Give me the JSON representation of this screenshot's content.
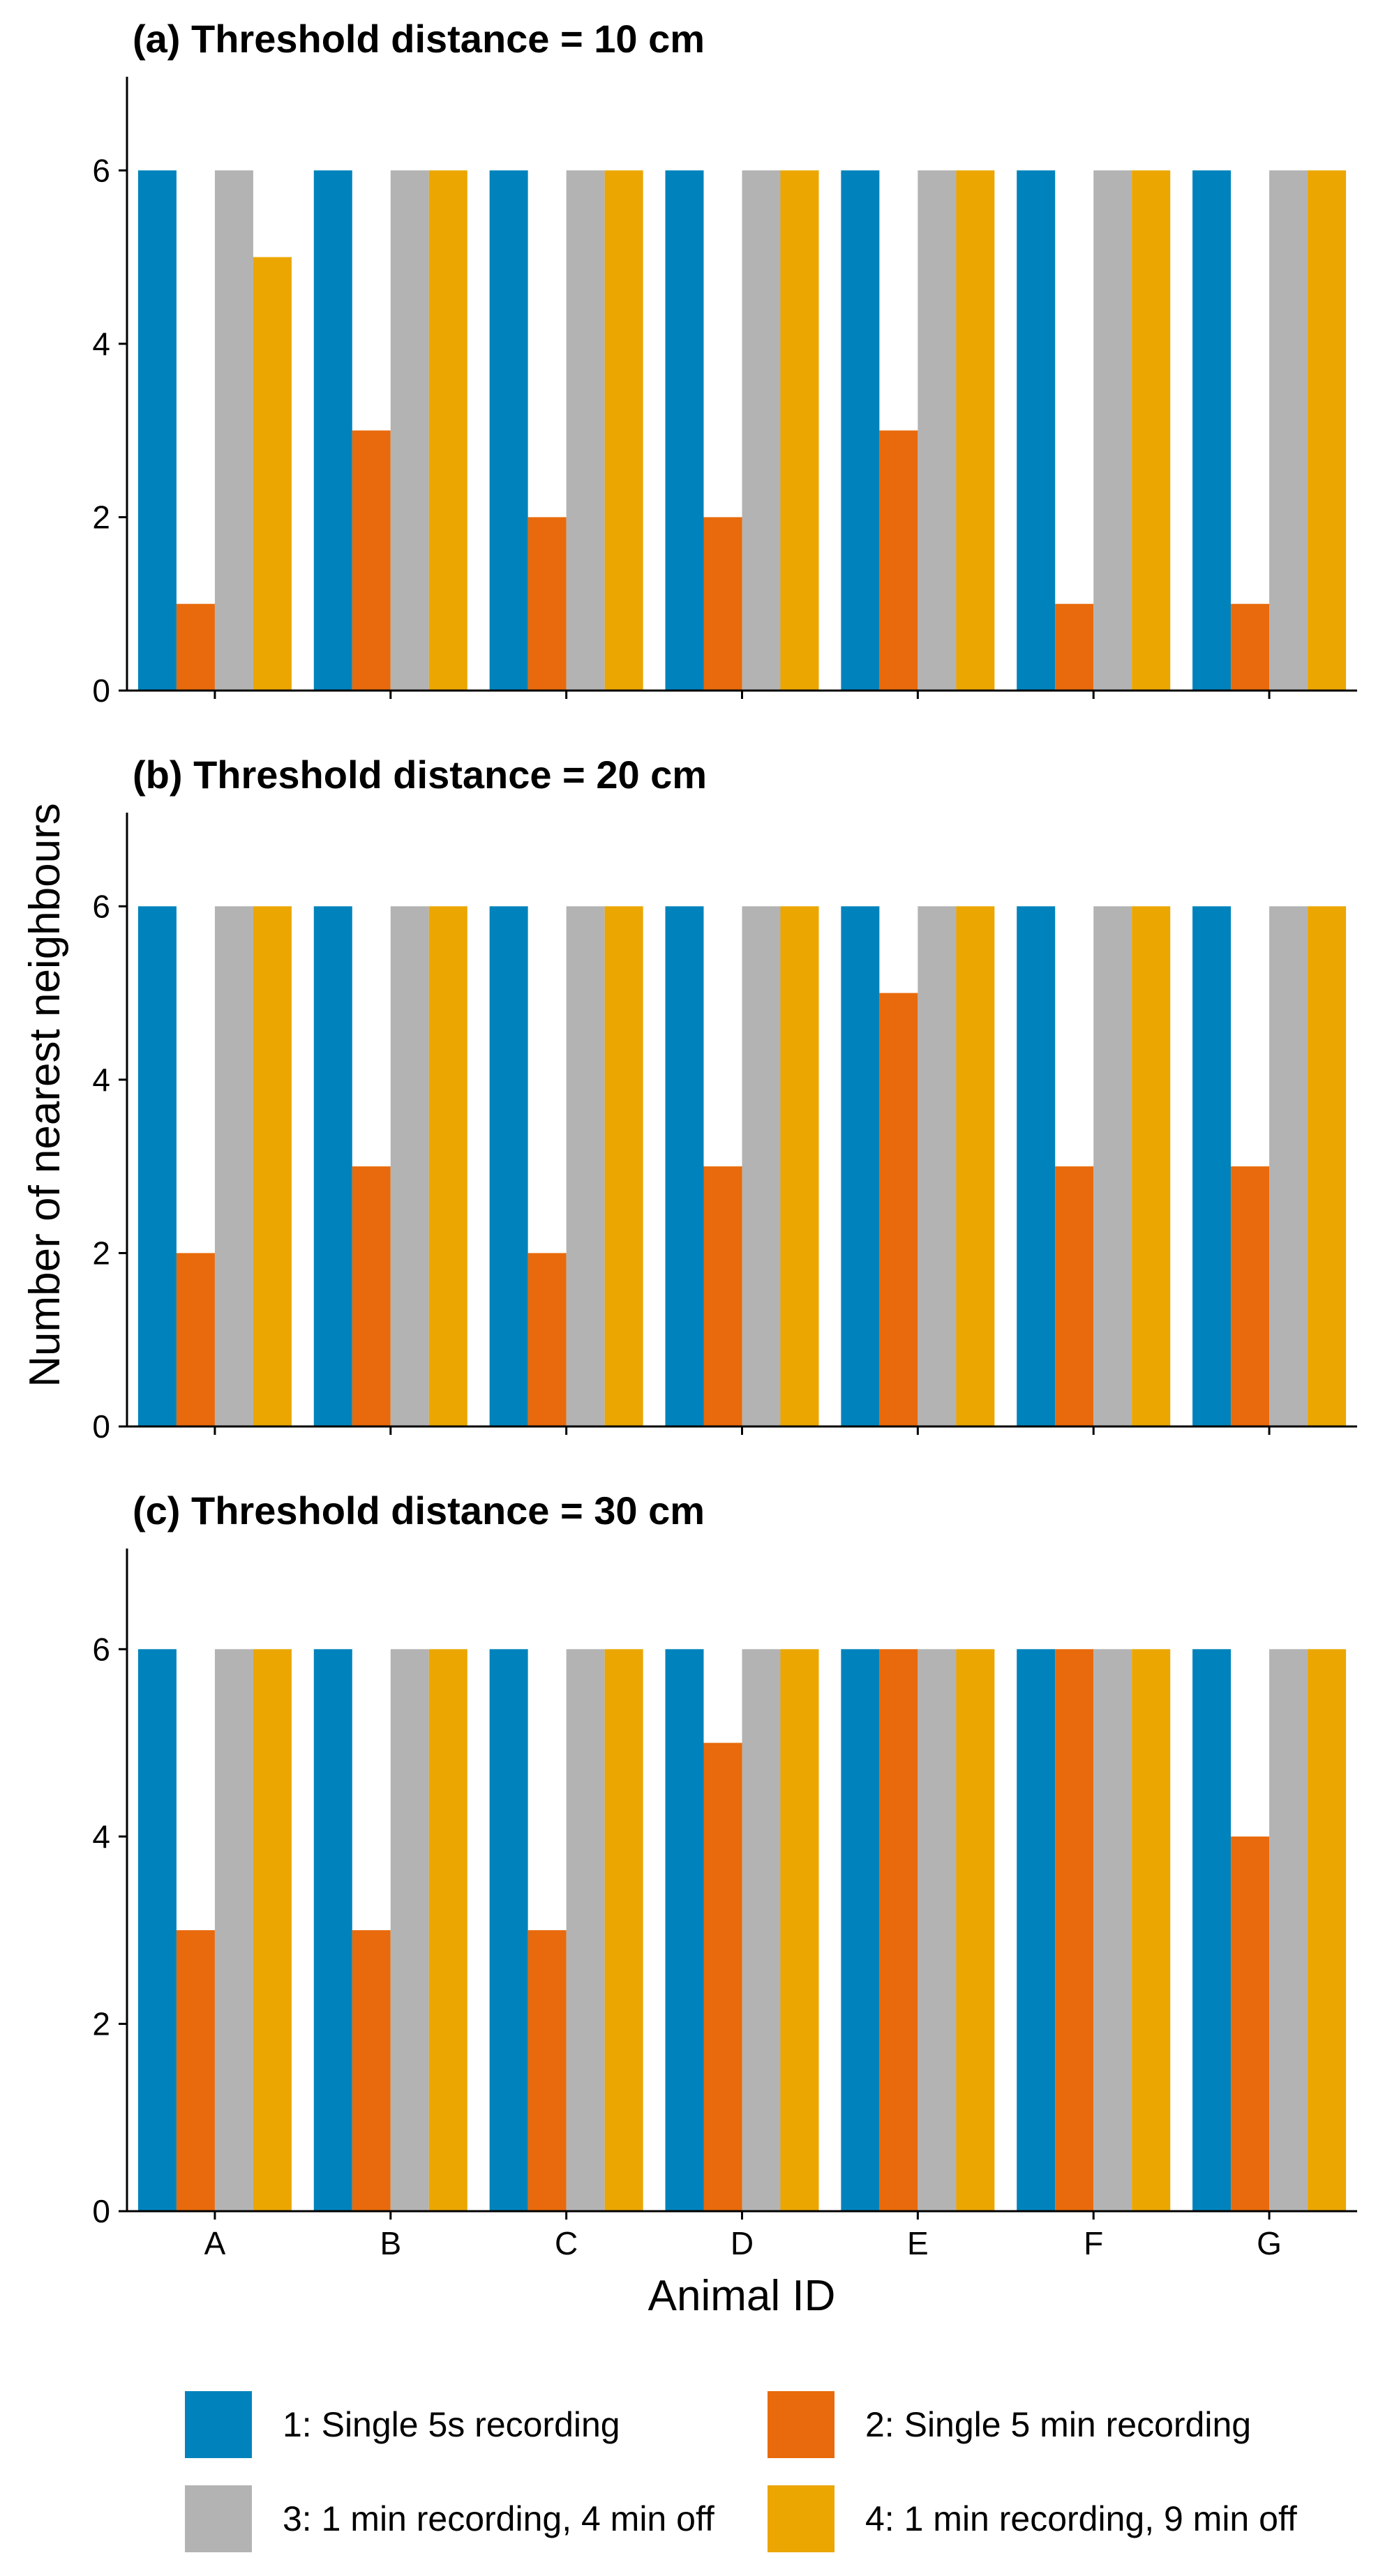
{
  "chart_data": {
    "type": "bar",
    "ylabel": "Number of nearest neighbours",
    "xlabel": "Animal ID",
    "categories": [
      "A",
      "B",
      "C",
      "D",
      "E",
      "F",
      "G"
    ],
    "ylim": [
      0,
      7
    ],
    "yticks": [
      "0",
      "2",
      "4",
      "6"
    ],
    "grid": false,
    "legend_position": "bottom",
    "series_defs": [
      {
        "name": "1: Single 5s recording",
        "color": "#0083BC"
      },
      {
        "name": "2: Single 5 min recording",
        "color": "#E86A0C"
      },
      {
        "name": "3: 1 min recording, 4 min off",
        "color": "#B3B3B3"
      },
      {
        "name": "4: 1 min recording, 9 min off",
        "color": "#EBA602"
      }
    ],
    "panels": [
      {
        "title": "(a) Threshold distance = 10 cm",
        "series": [
          {
            "name": "1: Single 5s recording",
            "values": [
              6,
              6,
              6,
              6,
              6,
              6,
              6
            ]
          },
          {
            "name": "2: Single 5 min recording",
            "values": [
              1,
              3,
              2,
              2,
              3,
              1,
              1
            ]
          },
          {
            "name": "3: 1 min recording, 4 min off",
            "values": [
              6,
              6,
              6,
              6,
              6,
              6,
              6
            ]
          },
          {
            "name": "4: 1 min recording, 9 min off",
            "values": [
              5,
              6,
              6,
              6,
              6,
              6,
              6
            ]
          }
        ]
      },
      {
        "title": "(b) Threshold distance = 20 cm",
        "series": [
          {
            "name": "1: Single 5s recording",
            "values": [
              6,
              6,
              6,
              6,
              6,
              6,
              6
            ]
          },
          {
            "name": "2: Single 5 min recording",
            "values": [
              2,
              3,
              2,
              3,
              5,
              3,
              3
            ]
          },
          {
            "name": "3: 1 min recording, 4 min off",
            "values": [
              6,
              6,
              6,
              6,
              6,
              6,
              6
            ]
          },
          {
            "name": "4: 1 min recording, 9 min off",
            "values": [
              6,
              6,
              6,
              6,
              6,
              6,
              6
            ]
          }
        ]
      },
      {
        "title": "(c) Threshold distance = 30 cm",
        "series": [
          {
            "name": "1: Single 5s recording",
            "values": [
              6,
              6,
              6,
              6,
              6,
              6,
              6
            ]
          },
          {
            "name": "2: Single 5 min recording",
            "values": [
              3,
              3,
              3,
              5,
              6,
              6,
              4
            ]
          },
          {
            "name": "3: 1 min recording, 4 min off",
            "values": [
              6,
              6,
              6,
              6,
              6,
              6,
              6
            ]
          },
          {
            "name": "4: 1 min recording, 9 min off",
            "values": [
              6,
              6,
              6,
              6,
              6,
              6,
              6
            ]
          }
        ]
      }
    ]
  }
}
